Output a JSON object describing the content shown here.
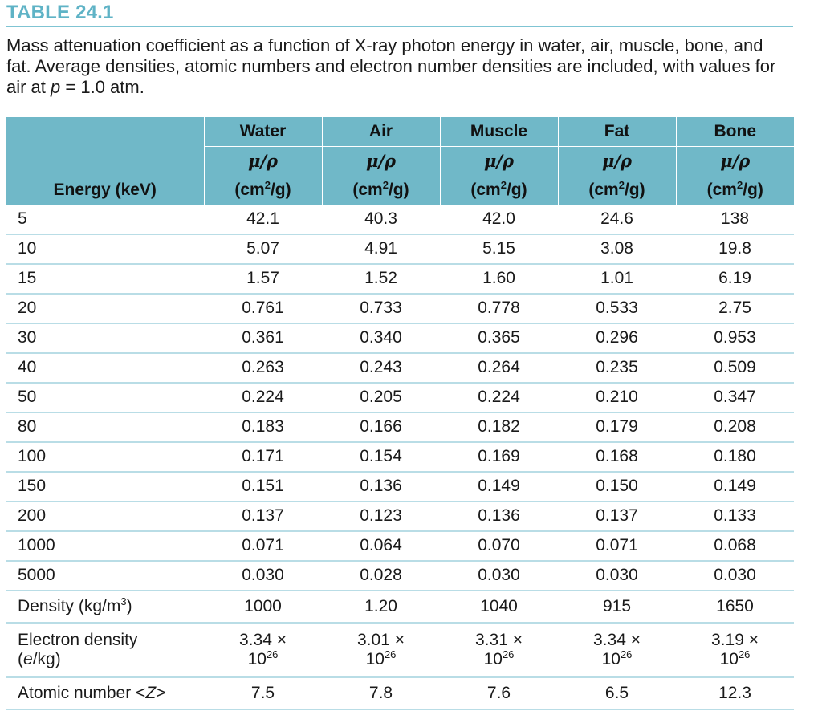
{
  "table_label": "TABLE 24.1",
  "caption_prefix": "Mass attenuation coefficient as a function of X-ray photon energy in water, air, muscle, bone, and fat. Average densities, atomic numbers and electron number densities are included, with values for air at ",
  "caption_var": "p",
  "caption_suffix": " = 1.0 atm.",
  "header": {
    "first_col": "Energy (keV)",
    "columns": [
      "Water",
      "Air",
      "Muscle",
      "Fat",
      "Bone"
    ],
    "quantity": "μ/ρ",
    "unit_prefix": "(cm",
    "unit_sup": "2",
    "unit_suffix": "/g)"
  },
  "rows": [
    {
      "energy": "5",
      "values": [
        "42.1",
        "40.3",
        "42.0",
        "24.6",
        "138"
      ]
    },
    {
      "energy": "10",
      "values": [
        "5.07",
        "4.91",
        "5.15",
        "3.08",
        "19.8"
      ]
    },
    {
      "energy": "15",
      "values": [
        "1.57",
        "1.52",
        "1.60",
        "1.01",
        "6.19"
      ]
    },
    {
      "energy": "20",
      "values": [
        "0.761",
        "0.733",
        "0.778",
        "0.533",
        "2.75"
      ]
    },
    {
      "energy": "30",
      "values": [
        "0.361",
        "0.340",
        "0.365",
        "0.296",
        "0.953"
      ]
    },
    {
      "energy": "40",
      "values": [
        "0.263",
        "0.243",
        "0.264",
        "0.235",
        "0.509"
      ]
    },
    {
      "energy": "50",
      "values": [
        "0.224",
        "0.205",
        "0.224",
        "0.210",
        "0.347"
      ]
    },
    {
      "energy": "80",
      "values": [
        "0.183",
        "0.166",
        "0.182",
        "0.179",
        "0.208"
      ]
    },
    {
      "energy": "100",
      "values": [
        "0.171",
        "0.154",
        "0.169",
        "0.168",
        "0.180"
      ]
    },
    {
      "energy": "150",
      "values": [
        "0.151",
        "0.136",
        "0.149",
        "0.150",
        "0.149"
      ]
    },
    {
      "energy": "200",
      "values": [
        "0.137",
        "0.123",
        "0.136",
        "0.137",
        "0.133"
      ]
    },
    {
      "energy": "1000",
      "values": [
        "0.071",
        "0.064",
        "0.070",
        "0.071",
        "0.068"
      ]
    },
    {
      "energy": "5000",
      "values": [
        "0.030",
        "0.028",
        "0.030",
        "0.030",
        "0.030"
      ]
    }
  ],
  "density": {
    "label_prefix": "Density (kg/m",
    "label_sup": "3",
    "label_suffix": ")",
    "values": [
      "1000",
      "1.20",
      "1040",
      "915",
      "1650"
    ]
  },
  "electron_density": {
    "label_line1": "Electron density",
    "label_line2_open": "(",
    "label_line2_var": "e",
    "label_line2_close": "/kg)",
    "mantissas": [
      "3.34 ×",
      "3.01 ×",
      "3.31 ×",
      "3.34 ×",
      "3.19 ×"
    ],
    "base": "10",
    "exponent": "26"
  },
  "atomic_number": {
    "label_prefix": "Atomic number <",
    "label_var": "Z",
    "label_suffix": ">",
    "values": [
      "7.5",
      "7.8",
      "7.6",
      "6.5",
      "12.3"
    ]
  }
}
